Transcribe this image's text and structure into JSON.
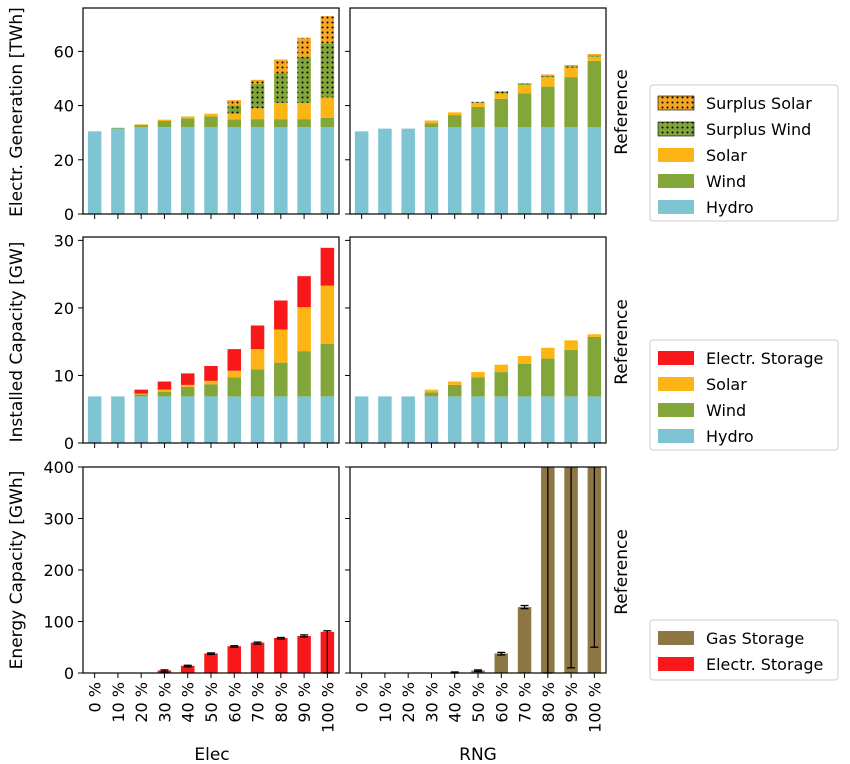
{
  "figure": {
    "col_labels": [
      "Elec",
      "RNG"
    ],
    "row_label_right": "Reference",
    "colors": {
      "hydro": "#7fc4d2",
      "wind": "#82a63a",
      "solar": "#fdb515",
      "surplus_solar": "#f5a623",
      "surplus_wind": "#82a63a",
      "electr_storage": "#f8181a",
      "gas_storage": "#8f7745"
    }
  },
  "chart_data": [
    {
      "type": "bar",
      "stacked": true,
      "row": 0,
      "ylabel": "Electr. Generation [TWh]",
      "ylim": [
        0,
        76
      ],
      "yticks": [
        0,
        20,
        40,
        60
      ],
      "legend_placement": "right",
      "legend": [
        {
          "name": "Surplus Solar",
          "key": "surplus_solar",
          "pattern": "dots"
        },
        {
          "name": "Surplus Wind",
          "key": "surplus_wind",
          "pattern": "dots"
        },
        {
          "name": "Solar",
          "key": "solar"
        },
        {
          "name": "Wind",
          "key": "wind"
        },
        {
          "name": "Hydro",
          "key": "hydro"
        }
      ],
      "panels": [
        {
          "categories": [
            "0 %",
            "10 %",
            "20 %",
            "30 %",
            "40 %",
            "50 %",
            "60 %",
            "70 %",
            "80 %",
            "90 %",
            "100 %"
          ],
          "series": [
            {
              "name": "Hydro",
              "key": "hydro",
              "values": [
                30.5,
                31.5,
                32,
                32,
                32,
                32,
                32,
                32,
                32,
                32,
                32
              ]
            },
            {
              "name": "Wind",
              "key": "wind",
              "values": [
                0,
                0.3,
                0.8,
                2.3,
                3.3,
                4.0,
                2.9,
                3.0,
                3.0,
                3.0,
                3.5
              ]
            },
            {
              "name": "Solar",
              "key": "solar",
              "values": [
                0,
                0,
                0.3,
                0.5,
                0.7,
                1.0,
                2.1,
                4.0,
                6.0,
                6.0,
                7.5
              ]
            },
            {
              "name": "Surplus Wind",
              "key": "surplus_wind",
              "values": [
                0,
                0,
                0,
                0,
                0,
                0,
                3.0,
                9.0,
                11.0,
                17.0,
                20.0
              ]
            },
            {
              "name": "Surplus Solar",
              "key": "surplus_solar",
              "values": [
                0,
                0,
                0,
                0,
                0,
                0,
                2.0,
                1.5,
                5.0,
                7.0,
                10.0
              ]
            }
          ]
        },
        {
          "categories": [
            "0 %",
            "10 %",
            "20 %",
            "30 %",
            "40 %",
            "50 %",
            "60 %",
            "70 %",
            "80 %",
            "90 %",
            "100 %"
          ],
          "series": [
            {
              "name": "Hydro",
              "key": "hydro",
              "values": [
                30.5,
                31.5,
                31.5,
                32,
                32,
                32,
                32,
                32,
                32,
                32,
                32
              ]
            },
            {
              "name": "Wind",
              "key": "wind",
              "values": [
                0,
                0,
                0,
                1.5,
                4.5,
                7.5,
                10.5,
                12.5,
                15.0,
                18.5,
                24.5
              ]
            },
            {
              "name": "Solar",
              "key": "solar",
              "values": [
                0,
                0,
                0,
                1.0,
                1.0,
                1.5,
                2.0,
                3.0,
                3.5,
                3.5,
                1.5
              ]
            },
            {
              "name": "Surplus Wind",
              "key": "surplus_wind",
              "values": [
                0,
                0,
                0,
                0,
                0,
                0.2,
                0.5,
                0.5,
                0.5,
                0.5,
                0.5
              ]
            },
            {
              "name": "Surplus Solar",
              "key": "surplus_solar",
              "values": [
                0,
                0,
                0,
                0,
                0,
                0.2,
                0.3,
                0.3,
                0.5,
                0.5,
                0.5
              ]
            }
          ]
        }
      ]
    },
    {
      "type": "bar",
      "stacked": true,
      "row": 1,
      "ylabel": "Installed Capacity [GW]",
      "ylim": [
        0,
        30.5
      ],
      "yticks": [
        0,
        10,
        20,
        30
      ],
      "legend_placement": "right",
      "legend": [
        {
          "name": "Electr. Storage",
          "key": "electr_storage"
        },
        {
          "name": "Solar",
          "key": "solar"
        },
        {
          "name": "Wind",
          "key": "wind"
        },
        {
          "name": "Hydro",
          "key": "hydro"
        }
      ],
      "panels": [
        {
          "categories": [
            "0 %",
            "10 %",
            "20 %",
            "30 %",
            "40 %",
            "50 %",
            "60 %",
            "70 %",
            "80 %",
            "90 %",
            "100 %"
          ],
          "series": [
            {
              "name": "Hydro",
              "key": "hydro",
              "values": [
                6.9,
                6.9,
                6.9,
                6.9,
                6.9,
                6.9,
                6.9,
                6.9,
                6.9,
                6.9,
                6.9
              ]
            },
            {
              "name": "Wind",
              "key": "wind",
              "values": [
                0,
                0,
                0.3,
                0.7,
                1.4,
                1.8,
                2.8,
                4.0,
                5.0,
                6.7,
                7.8
              ]
            },
            {
              "name": "Solar",
              "key": "solar",
              "values": [
                0,
                0,
                0.1,
                0.3,
                0.3,
                0.5,
                1.0,
                3.0,
                4.9,
                6.5,
                8.6
              ]
            },
            {
              "name": "Electr. Storage",
              "key": "electr_storage",
              "values": [
                0,
                0,
                0.6,
                1.2,
                1.7,
                2.2,
                3.2,
                3.5,
                4.3,
                4.6,
                5.6
              ]
            }
          ]
        },
        {
          "categories": [
            "0 %",
            "10 %",
            "20 %",
            "30 %",
            "40 %",
            "50 %",
            "60 %",
            "70 %",
            "80 %",
            "90 %",
            "100 %"
          ],
          "series": [
            {
              "name": "Hydro",
              "key": "hydro",
              "values": [
                6.9,
                6.9,
                6.9,
                6.9,
                6.9,
                6.9,
                6.9,
                6.9,
                6.9,
                6.9,
                6.9
              ]
            },
            {
              "name": "Wind",
              "key": "wind",
              "values": [
                0,
                0,
                0,
                0.6,
                1.7,
                2.8,
                3.6,
                4.8,
                5.6,
                6.9,
                8.8
              ]
            },
            {
              "name": "Solar",
              "key": "solar",
              "values": [
                0,
                0,
                0,
                0.4,
                0.5,
                0.8,
                1.1,
                1.2,
                1.6,
                1.4,
                0.4
              ]
            },
            {
              "name": "Electr. Storage",
              "key": "electr_storage",
              "values": [
                0,
                0,
                0,
                0,
                0,
                0,
                0,
                0,
                0,
                0,
                0
              ]
            }
          ]
        }
      ]
    },
    {
      "type": "bar",
      "stacked": true,
      "row": 2,
      "ylabel": "Energy Capacity [GWh]",
      "ylim": [
        0,
        400
      ],
      "yticks": [
        0,
        100,
        200,
        300,
        400
      ],
      "legend_placement": "right",
      "legend": [
        {
          "name": "Gas Storage",
          "key": "gas_storage"
        },
        {
          "name": "Electr. Storage",
          "key": "electr_storage"
        }
      ],
      "panels": [
        {
          "categories": [
            "0 %",
            "10 %",
            "20 %",
            "30 %",
            "40 %",
            "50 %",
            "60 %",
            "70 %",
            "80 %",
            "90 %",
            "100 %"
          ],
          "series": [
            {
              "name": "Electr. Storage",
              "key": "electr_storage",
              "values": [
                0,
                0,
                0,
                5,
                14,
                38,
                52,
                59,
                68,
                72,
                80
              ]
            },
            {
              "name": "Gas Storage",
              "key": "gas_storage",
              "values": [
                0,
                0,
                0,
                0,
                0,
                0,
                0,
                0,
                0,
                0,
                0
              ]
            }
          ],
          "error_bars": [
            null,
            null,
            null,
            [
              2,
              6
            ],
            [
              12,
              15
            ],
            [
              36,
              39
            ],
            [
              50,
              53
            ],
            [
              56,
              60
            ],
            [
              66,
              69
            ],
            [
              70,
              74
            ],
            [
              0,
              82
            ]
          ]
        },
        {
          "categories": [
            "0 %",
            "10 %",
            "20 %",
            "30 %",
            "40 %",
            "50 %",
            "60 %",
            "70 %",
            "80 %",
            "90 %",
            "100 %"
          ],
          "series": [
            {
              "name": "Electr. Storage",
              "key": "electr_storage",
              "values": [
                0,
                0,
                0,
                0,
                0,
                0,
                0,
                0,
                0,
                0,
                0
              ]
            },
            {
              "name": "Gas Storage",
              "key": "gas_storage",
              "values": [
                0,
                0,
                0,
                0,
                1,
                5,
                38,
                128,
                400,
                400,
                400
              ]
            }
          ],
          "error_bars": [
            null,
            null,
            null,
            null,
            [
              0,
              2
            ],
            [
              3,
              6
            ],
            [
              35,
              40
            ],
            [
              125,
              131
            ],
            [
              0,
              400
            ],
            [
              10,
              400
            ],
            [
              50,
              400
            ]
          ]
        }
      ]
    }
  ]
}
